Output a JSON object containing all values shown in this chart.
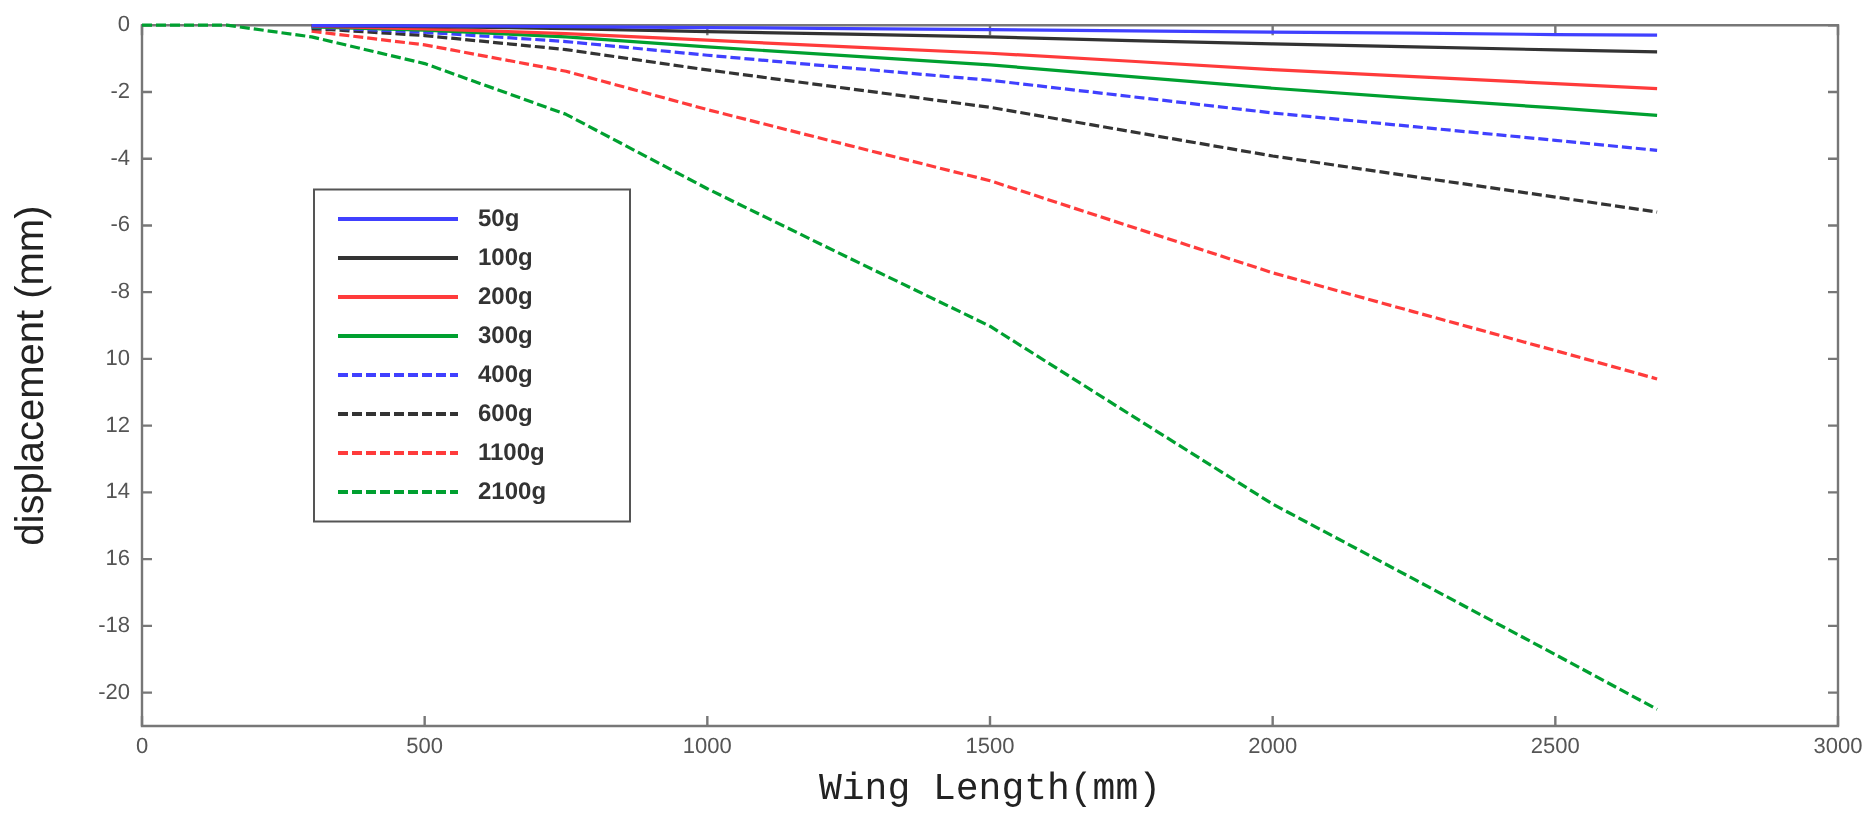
{
  "chart_data": {
    "type": "line",
    "xlabel": "Wing Length(mm)",
    "ylabel": "displacement (mm)",
    "x": [
      0,
      150,
      300,
      500,
      750,
      1000,
      1250,
      1500,
      1750,
      2000,
      2250,
      2500,
      2680
    ],
    "xlim": [
      0,
      3000
    ],
    "xticks": [
      0,
      500,
      1000,
      1500,
      2000,
      2500,
      3000
    ],
    "ylim": [
      -21,
      0
    ],
    "yticks": [
      0,
      -2,
      -4,
      -6,
      -8,
      {
        "value": -10,
        "label": "10"
      },
      {
        "value": -12,
        "label": "12"
      },
      {
        "value": -14,
        "label": "14"
      },
      {
        "value": -16,
        "label": "16"
      },
      -18,
      -20
    ],
    "grid": false,
    "legend": "left",
    "marker": "none",
    "series": [
      {
        "name": "50g",
        "color": "#4040ff",
        "line_style": "solid",
        "values": [
          null,
          null,
          -0.01,
          -0.02,
          -0.04,
          -0.07,
          -0.1,
          -0.13,
          -0.17,
          -0.21,
          -0.24,
          -0.28,
          -0.3
        ]
      },
      {
        "name": "100g",
        "color": "#333333",
        "line_style": "solid",
        "values": [
          null,
          null,
          -0.01,
          -0.04,
          -0.1,
          -0.19,
          -0.27,
          -0.35,
          -0.46,
          -0.56,
          -0.65,
          -0.74,
          -0.8
        ]
      },
      {
        "name": "200g",
        "color": "#ff3b3b",
        "line_style": "solid",
        "values": [
          null,
          null,
          -0.03,
          -0.11,
          -0.25,
          -0.45,
          -0.65,
          -0.84,
          -1.08,
          -1.33,
          -1.54,
          -1.75,
          -1.9
        ]
      },
      {
        "name": "300g",
        "color": "#00a030",
        "line_style": "solid",
        "values": [
          null,
          null,
          -0.05,
          -0.15,
          -0.35,
          -0.65,
          -0.92,
          -1.19,
          -1.54,
          -1.89,
          -2.19,
          -2.48,
          -2.7
        ]
      },
      {
        "name": "400g",
        "color": "#4040ff",
        "line_style": "dashed",
        "values": [
          null,
          null,
          -0.06,
          -0.21,
          -0.49,
          -0.9,
          -1.28,
          -1.65,
          -2.14,
          -2.63,
          -3.04,
          -3.45,
          -3.75
        ]
      },
      {
        "name": "600g",
        "color": "#333333",
        "line_style": "dashed",
        "values": [
          null,
          null,
          -0.1,
          -0.31,
          -0.73,
          -1.34,
          -1.9,
          -2.46,
          -3.19,
          -3.92,
          -4.54,
          -5.15,
          -5.6
        ]
      },
      {
        "name": "1100g",
        "color": "#ff3b3b",
        "line_style": "dashed",
        "values": [
          null,
          null,
          -0.18,
          -0.59,
          -1.38,
          -2.53,
          -3.6,
          -4.66,
          -6.04,
          -7.42,
          -8.59,
          -9.75,
          -10.6
        ]
      },
      {
        "name": "2100g",
        "color": "#00a030",
        "line_style": "dashed",
        "values": [
          0,
          0,
          -0.35,
          -1.15,
          -2.67,
          -4.9,
          -6.97,
          -9.02,
          -11.69,
          -14.35,
          -16.6,
          -18.86,
          -20.5
        ]
      }
    ]
  }
}
